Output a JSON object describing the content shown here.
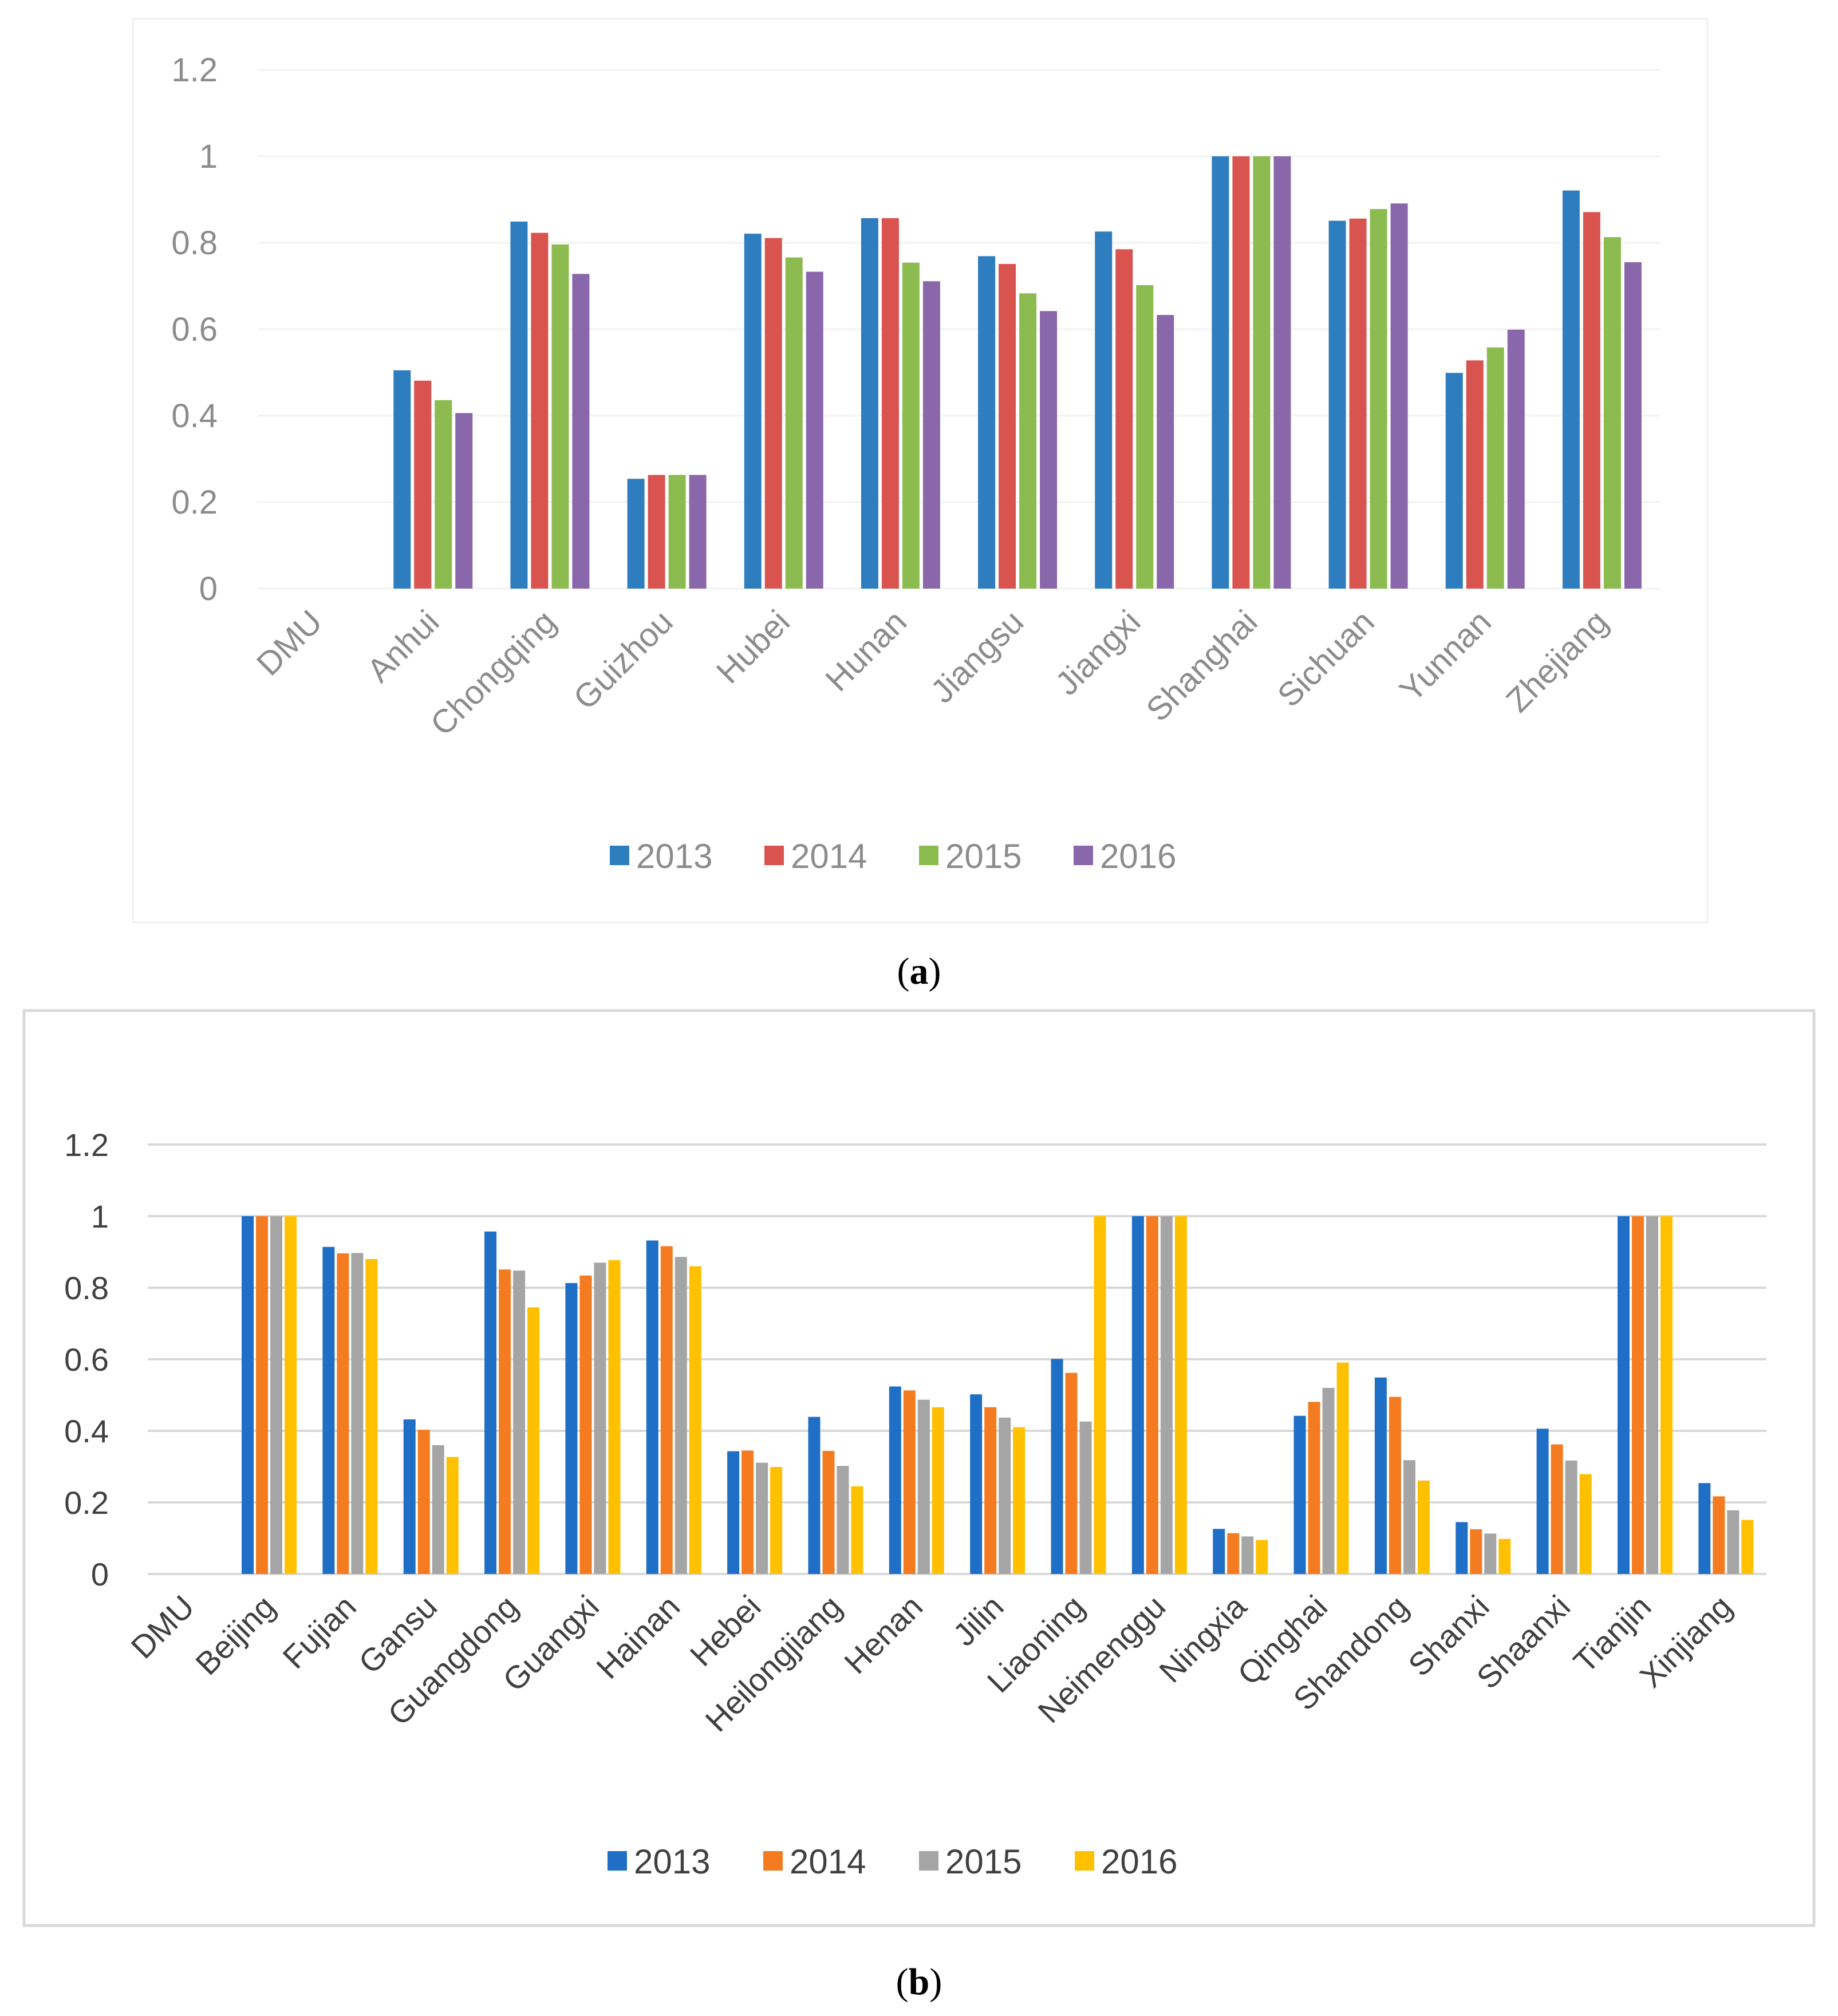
{
  "chart_data": [
    {
      "id": "a",
      "type": "bar",
      "caption_open": "(",
      "caption_letter": "a",
      "caption_close": ")",
      "categories": [
        "DMU",
        "Anhui",
        "Chongqing",
        "Guizhou",
        "Hubei",
        "Hunan",
        "Jiangsu",
        "Jiangxi",
        "Shanghai",
        "Sichuan",
        "Yunnan",
        "Zhejiang"
      ],
      "series": [
        {
          "name": "2013",
          "color": "#2e7ebf",
          "values": [
            null,
            0.505,
            0.849,
            0.254,
            0.821,
            0.857,
            0.769,
            0.826,
            1.0,
            0.851,
            0.499,
            0.921
          ]
        },
        {
          "name": "2014",
          "color": "#d9534f",
          "values": [
            null,
            0.481,
            0.823,
            0.263,
            0.811,
            0.857,
            0.751,
            0.785,
            1.0,
            0.856,
            0.528,
            0.871
          ]
        },
        {
          "name": "2015",
          "color": "#8cbb4f",
          "values": [
            null,
            0.436,
            0.796,
            0.263,
            0.766,
            0.754,
            0.683,
            0.702,
            1.0,
            0.878,
            0.558,
            0.813
          ]
        },
        {
          "name": "2016",
          "color": "#8a67aa",
          "values": [
            null,
            0.406,
            0.728,
            0.263,
            0.733,
            0.711,
            0.642,
            0.633,
            1.0,
            0.891,
            0.599,
            0.755
          ]
        }
      ],
      "y_ticks": [
        "0",
        "0.2",
        "0.4",
        "0.6",
        "0.8",
        "1",
        "1.2"
      ],
      "ylim": [
        0,
        1.2
      ],
      "legend": "bottom-center"
    },
    {
      "id": "b",
      "type": "bar",
      "caption_open": "(",
      "caption_letter": "b",
      "caption_close": ")",
      "categories": [
        "DMU",
        "Beijing",
        "Fujian",
        "Gansu",
        "Guangdong",
        "Guangxi",
        "Hainan",
        "Hebei",
        "Heilongjiang",
        "Henan",
        "Jilin",
        "Liaoning",
        "Neimenggu",
        "Ningxia",
        "Qinghai",
        "Shandong",
        "Shanxi",
        "Shaanxi",
        "Tianjin",
        "Xinjiang"
      ],
      "series": [
        {
          "name": "2013",
          "color": "#1f6fc6",
          "values": [
            null,
            1.0,
            0.914,
            0.432,
            0.957,
            0.813,
            0.932,
            0.343,
            0.439,
            0.524,
            0.502,
            0.601,
            1.0,
            0.126,
            0.442,
            0.549,
            0.145,
            0.406,
            1.0,
            0.254
          ]
        },
        {
          "name": "2014",
          "color": "#f47b20",
          "values": [
            null,
            1.0,
            0.896,
            0.403,
            0.851,
            0.834,
            0.916,
            0.345,
            0.344,
            0.513,
            0.466,
            0.562,
            1.0,
            0.114,
            0.481,
            0.495,
            0.125,
            0.362,
            1.0,
            0.217
          ]
        },
        {
          "name": "2015",
          "color": "#a5a5a5",
          "values": [
            null,
            1.0,
            0.897,
            0.36,
            0.848,
            0.87,
            0.886,
            0.311,
            0.302,
            0.487,
            0.437,
            0.426,
            1.0,
            0.105,
            0.52,
            0.318,
            0.113,
            0.317,
            1.0,
            0.178
          ]
        },
        {
          "name": "2016",
          "color": "#ffc000",
          "values": [
            null,
            1.0,
            0.88,
            0.327,
            0.745,
            0.877,
            0.86,
            0.299,
            0.245,
            0.466,
            0.41,
            1.0,
            1.0,
            0.095,
            0.591,
            0.261,
            0.098,
            0.279,
            1.0,
            0.151
          ]
        }
      ],
      "y_ticks": [
        "0",
        "0.2",
        "0.4",
        "0.6",
        "0.8",
        "1",
        "1.2"
      ],
      "ylim": [
        0,
        1.2
      ],
      "legend": "bottom-center"
    }
  ]
}
